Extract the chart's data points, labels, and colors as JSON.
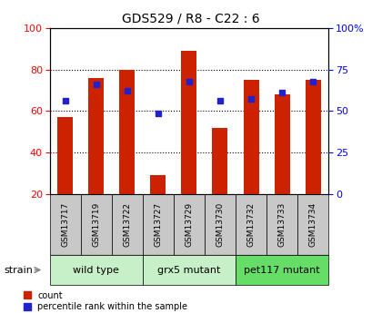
{
  "title": "GDS529 / R8 - C22 : 6",
  "samples": [
    "GSM13717",
    "GSM13719",
    "GSM13722",
    "GSM13727",
    "GSM13729",
    "GSM13730",
    "GSM13732",
    "GSM13733",
    "GSM13734"
  ],
  "counts": [
    57,
    76,
    80,
    29,
    89,
    52,
    75,
    68,
    75
  ],
  "percentiles": [
    65,
    73,
    70,
    59,
    74,
    65,
    66,
    69,
    74
  ],
  "groups": [
    {
      "label": "wild type",
      "start": 0,
      "end": 3,
      "color": "#c8f0c8"
    },
    {
      "label": "grx5 mutant",
      "start": 3,
      "end": 6,
      "color": "#c8f0c8"
    },
    {
      "label": "pet117 mutant",
      "start": 6,
      "end": 9,
      "color": "#66dd66"
    }
  ],
  "ylim_left": [
    20,
    100
  ],
  "ylim_right": [
    0,
    100
  ],
  "yticks_left": [
    20,
    40,
    60,
    80,
    100
  ],
  "yticks_right": [
    0,
    25,
    50,
    75,
    100
  ],
  "ytick_labels_right": [
    "0",
    "25",
    "50",
    "75",
    "100%"
  ],
  "bar_color": "#cc2200",
  "marker_color": "#2222cc",
  "bar_width": 0.5,
  "tick_label_area_color": "#c8c8c8",
  "strain_label": "strain"
}
